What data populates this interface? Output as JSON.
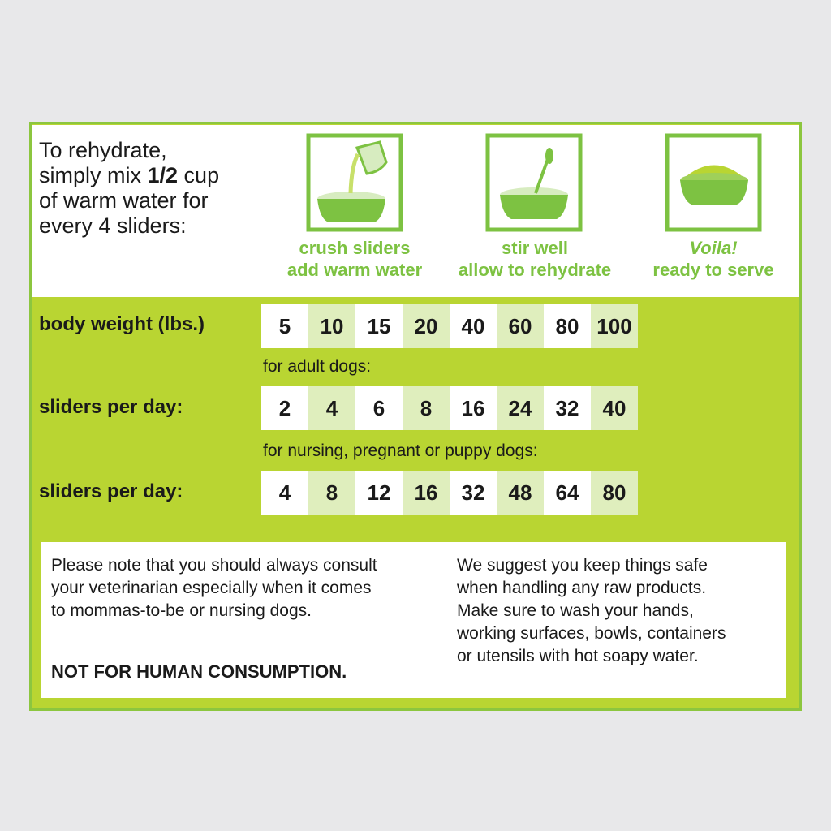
{
  "intro": {
    "lines": [
      [
        "To rehydrate,"
      ],
      [
        "simply mix ",
        "1/2",
        " cup"
      ],
      [
        "of warm water for"
      ],
      [
        "every 4 sliders:"
      ]
    ]
  },
  "steps": [
    {
      "lines": [
        "crush sliders",
        "add warm water"
      ]
    },
    {
      "lines": [
        "stir well",
        "allow to rehydrate"
      ]
    },
    {
      "lines": [
        "Voila!",
        "ready to serve"
      ]
    }
  ],
  "table": {
    "header": {
      "label": "body weight (lbs.)",
      "values": [
        5,
        10,
        15,
        20,
        40,
        60,
        80,
        100
      ]
    },
    "groups": [
      {
        "note": "for adult dogs:",
        "label": "sliders per day:",
        "values": [
          2,
          4,
          6,
          8,
          16,
          24,
          32,
          40
        ]
      },
      {
        "note": "for nursing, pregnant or puppy dogs:",
        "label": "sliders per day:",
        "values": [
          4,
          8,
          12,
          16,
          32,
          48,
          64,
          80
        ]
      }
    ]
  },
  "notes": {
    "left": [
      "Please note that you should always consult",
      "your veterinarian especially when it comes",
      "to mommas-to-be or nursing dogs."
    ],
    "warning": "NOT FOR HUMAN CONSUMPTION.",
    "right": [
      "We suggest you keep things safe",
      "when handling any raw products.",
      "Make sure to wash your hands,",
      "working surfaces, bowls, containers",
      "or utensils with hot soapy water."
    ]
  }
}
